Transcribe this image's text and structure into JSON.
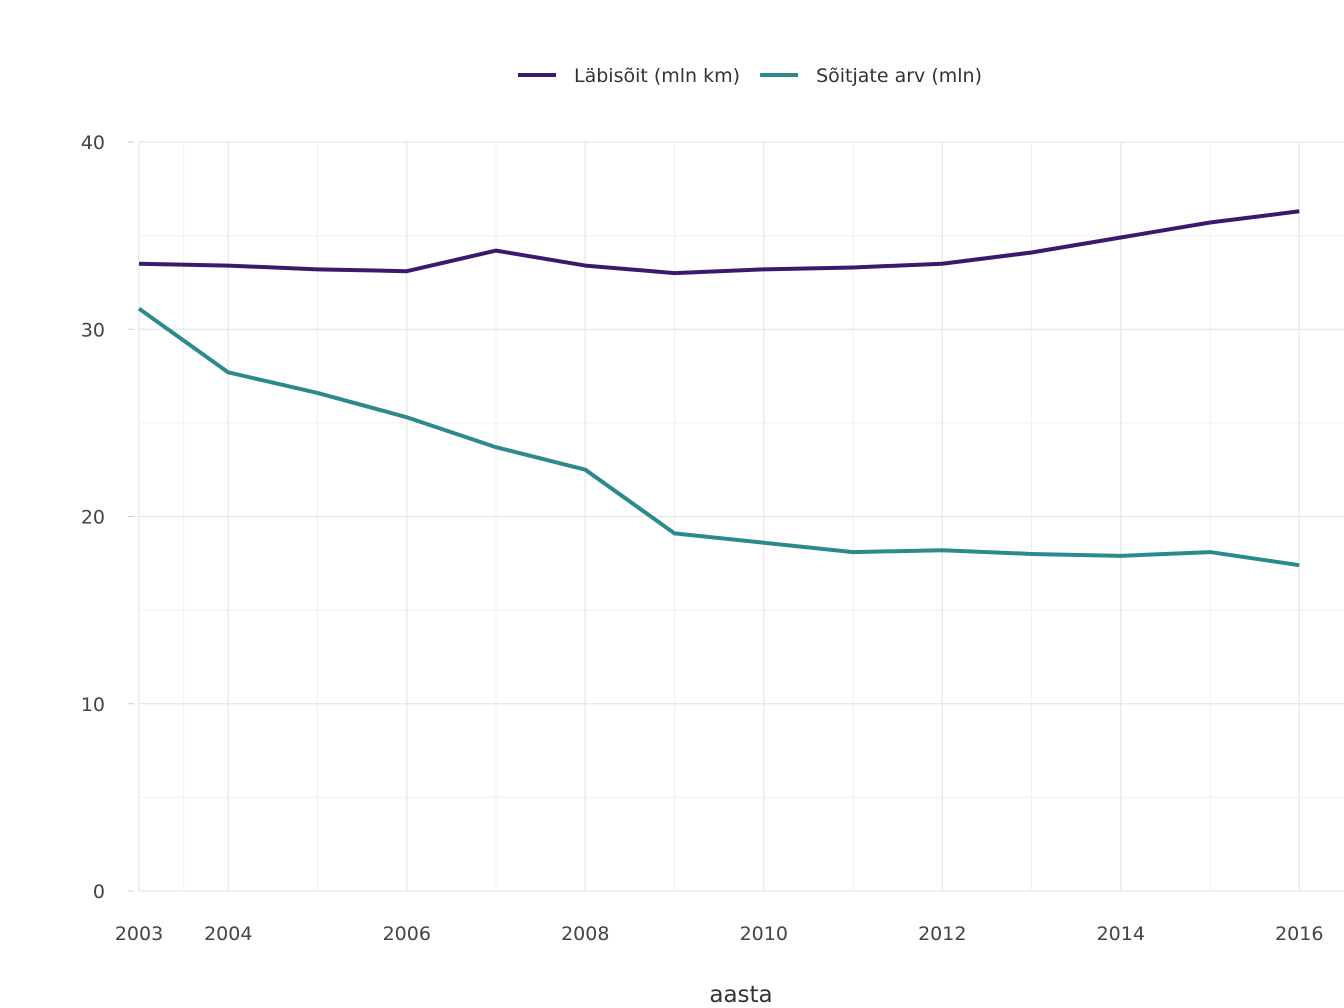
{
  "chart_data": {
    "type": "line",
    "title": "",
    "xlabel": "aasta",
    "ylabel": "",
    "x": [
      2003,
      2004,
      2005,
      2006,
      2007,
      2008,
      2009,
      2010,
      2011,
      2012,
      2013,
      2014,
      2015,
      2016
    ],
    "x_ticks": [
      2003,
      2004,
      2006,
      2008,
      2010,
      2012,
      2014,
      2016
    ],
    "x_minor_grid": [
      2003.5,
      2005,
      2007,
      2009,
      2011,
      2013,
      2015
    ],
    "xlim": [
      2003,
      2016.5
    ],
    "ylim": [
      0,
      40
    ],
    "y_ticks": [
      0,
      10,
      20,
      30,
      40
    ],
    "y_minor_grid": [
      5,
      15,
      25,
      35
    ],
    "grid": true,
    "legend_position": "top",
    "series": [
      {
        "name": "Läbisõit (mln km)",
        "color": "#3b1a6b",
        "values": [
          33.5,
          33.4,
          33.2,
          33.1,
          34.2,
          33.4,
          33.0,
          33.2,
          33.3,
          33.5,
          34.1,
          34.9,
          35.7,
          36.3
        ]
      },
      {
        "name": "Sõitjate arv (mln)",
        "color": "#2e8a8a",
        "values": [
          31.1,
          27.7,
          26.6,
          25.3,
          23.7,
          22.5,
          19.1,
          18.6,
          18.1,
          18.2,
          18.0,
          17.9,
          18.1,
          17.4
        ]
      }
    ]
  }
}
